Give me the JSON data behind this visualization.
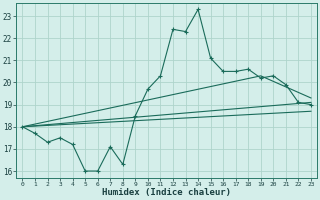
{
  "xlabel": "Humidex (Indice chaleur)",
  "bg_color": "#d4eeea",
  "grid_color": "#aed4cc",
  "line_color": "#1a6b5a",
  "xlim": [
    -0.5,
    23.5
  ],
  "ylim": [
    15.7,
    23.6
  ],
  "yticks": [
    16,
    17,
    18,
    19,
    20,
    21,
    22,
    23
  ],
  "xticks": [
    0,
    1,
    2,
    3,
    4,
    5,
    6,
    7,
    8,
    9,
    10,
    11,
    12,
    13,
    14,
    15,
    16,
    17,
    18,
    19,
    20,
    21,
    22,
    23
  ],
  "main_x": [
    0,
    1,
    2,
    3,
    4,
    5,
    6,
    7,
    8,
    9,
    10,
    11,
    12,
    13,
    14,
    15,
    16,
    17,
    18,
    19,
    20,
    21,
    22,
    23
  ],
  "main_y": [
    18.0,
    17.7,
    17.3,
    17.5,
    17.2,
    16.0,
    16.0,
    17.1,
    16.3,
    18.5,
    19.7,
    20.3,
    22.4,
    22.3,
    23.3,
    21.1,
    20.5,
    20.5,
    20.6,
    20.2,
    20.3,
    19.9,
    19.1,
    19.0
  ],
  "line2_x": [
    0,
    23
  ],
  "line2_y": [
    18.0,
    19.1
  ],
  "line3_x": [
    0,
    19,
    23
  ],
  "line3_y": [
    18.0,
    20.3,
    19.3
  ],
  "line4_x": [
    0,
    23
  ],
  "line4_y": [
    18.0,
    18.7
  ]
}
